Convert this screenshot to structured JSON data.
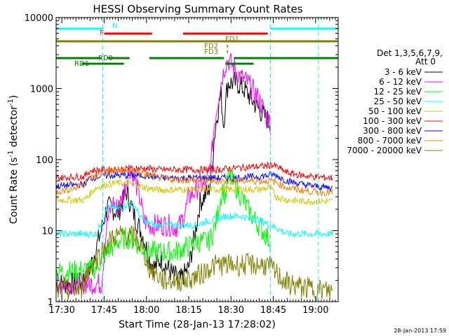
{
  "chart_data": {
    "type": "line",
    "title": "HESSI Observing Summary Count Rates",
    "xlabel": "Start Time (28-Jan-13 17:28:02)",
    "ylabel": "Count Rate (s⁻¹ detector⁻¹)",
    "ylabel_main": "Count Rate (s",
    "ylabel_sup1": "-1",
    "ylabel_mid": " detector",
    "ylabel_sup2": "-1",
    "ylabel_end": ")",
    "yscale": "log",
    "xlim_minutes": [
      -2.0333,
      98
    ],
    "ylim": [
      1,
      10000
    ],
    "xticks": [
      {
        "m": 0,
        "label": "17:30"
      },
      {
        "m": 15,
        "label": "17:45"
      },
      {
        "m": 30,
        "label": "18:00"
      },
      {
        "m": 45,
        "label": "18:15"
      },
      {
        "m": 60,
        "label": "18:30"
      },
      {
        "m": 75,
        "label": "18:45"
      },
      {
        "m": 90,
        "label": "19:00"
      }
    ],
    "yticks": [
      {
        "v": 1,
        "label": "1"
      },
      {
        "v": 10,
        "label": "10"
      },
      {
        "v": 100,
        "label": "100"
      },
      {
        "v": 1000,
        "label": "1000"
      },
      {
        "v": 10000,
        "label": "10000"
      }
    ],
    "legend": {
      "placement": "right",
      "header": [
        "Det 1,3,5,6,7,9,",
        "Att 0"
      ],
      "entries": [
        {
          "label": "3 - 6 keV",
          "color": "#000000"
        },
        {
          "label": "6 - 12 keV",
          "color": "#ff00ff"
        },
        {
          "label": "12 - 25 keV",
          "color": "#00ff00"
        },
        {
          "label": "25 - 50 keV",
          "color": "#00ffff"
        },
        {
          "label": "50 - 100 keV",
          "color": "#d2c800"
        },
        {
          "label": "100 - 300 keV",
          "color": "#ff0000"
        },
        {
          "label": "300 - 800 keV",
          "color": "#0000ff"
        },
        {
          "label": "800 - 7000 keV",
          "color": "#ff7f00"
        },
        {
          "label": "7000 - 20000 keV",
          "color": "#7f7f00"
        }
      ]
    },
    "flags": [
      {
        "label": "N",
        "color": "#00ffff",
        "segments": [
          [
            -2,
            14.5
          ],
          [
            74,
            98
          ]
        ]
      },
      {
        "label": "F",
        "color": "#ff0000",
        "segments": [
          [
            15,
            32
          ],
          [
            43,
            73
          ]
        ]
      },
      {
        "label": "FD1",
        "color": "#7f7f00",
        "segments": [
          [
            -2,
            98
          ]
        ]
      },
      {
        "label": "FD2",
        "color": "#7f7f00",
        "segments": [
          [
            58.5,
            59
          ]
        ]
      },
      {
        "label": "FD3",
        "color": "#7f7f00",
        "segments": [
          [
            58.5,
            59
          ]
        ]
      },
      {
        "label": "RD0",
        "color": "#008000",
        "segments": [
          [
            -2,
            14
          ],
          [
            16,
            24
          ],
          [
            31,
            57.5
          ],
          [
            61,
            98
          ]
        ]
      },
      {
        "label": "RD6",
        "color": "#008000",
        "segments": [
          [
            7,
            22
          ],
          [
            58,
            68
          ]
        ]
      }
    ],
    "saa_boundaries_minutes": [
      14.5,
      74,
      91
    ],
    "series": [
      {
        "name": "3 - 6 keV",
        "color": "#000000",
        "x": [
          -2,
          7,
          10,
          14,
          16,
          18,
          20,
          23,
          26,
          29,
          31,
          33,
          35,
          39,
          42,
          45,
          47,
          49,
          51,
          52,
          53,
          53.5,
          54,
          55,
          56,
          56.5,
          57,
          57.5,
          58,
          59,
          62,
          65,
          70,
          72,
          73.5,
          74
        ],
        "y": [
          1.8,
          1.8,
          3,
          10,
          22,
          20,
          18,
          35,
          15,
          8,
          4,
          3,
          4,
          2.5,
          2,
          3,
          8,
          25,
          32,
          35,
          60,
          100,
          200,
          400,
          700,
          800,
          450,
          300,
          700,
          1200,
          1200,
          950,
          500,
          400,
          350,
          320
        ]
      },
      {
        "name": "6 - 12 keV",
        "color": "#ff00ff",
        "x": [
          -2,
          14,
          16,
          18,
          20,
          22,
          24,
          26,
          28,
          29,
          31,
          33,
          35,
          38,
          40,
          42,
          44,
          45,
          47,
          49,
          51,
          53,
          54,
          56,
          57,
          58,
          59,
          61,
          63,
          66,
          70,
          72,
          73.5,
          74
        ],
        "y": [
          1.8,
          1.8,
          13,
          25,
          20,
          35,
          80,
          50,
          25,
          14,
          12,
          12,
          12,
          12,
          11,
          12,
          20,
          30,
          35,
          45,
          40,
          100,
          300,
          1000,
          1500,
          2200,
          2500,
          2000,
          1500,
          1200,
          700,
          450,
          350,
          320
        ]
      },
      {
        "name": "12 - 25 keV",
        "color": "#00ff00",
        "x": [
          -2,
          10,
          12,
          16,
          20,
          23,
          26,
          30,
          35,
          40,
          45,
          48,
          50,
          52,
          53.5,
          55,
          56,
          57,
          58,
          59,
          62,
          66,
          68,
          74
        ],
        "y": [
          2.6,
          2.8,
          3,
          5,
          7,
          8,
          7,
          5,
          5,
          5,
          6,
          7,
          7,
          7,
          9,
          15,
          25,
          40,
          30,
          60,
          40,
          20,
          15,
          7
        ]
      },
      {
        "name": "25 - 50 keV",
        "color": "#00ffff",
        "x": [
          -2,
          12,
          14,
          16,
          18,
          20,
          22,
          24,
          26,
          28,
          30,
          33,
          36,
          40,
          44,
          46,
          48,
          50,
          53,
          56,
          58,
          60,
          62,
          64,
          66,
          68,
          70,
          72,
          74,
          76,
          80,
          85,
          90,
          96
        ],
        "y": [
          9,
          9,
          13,
          20,
          22,
          20,
          22,
          25,
          22,
          15,
          13,
          12,
          12,
          12,
          12,
          12,
          12,
          13,
          14,
          15,
          16,
          16,
          16,
          16,
          15,
          15,
          14,
          13,
          12,
          11,
          9,
          9,
          9,
          9
        ]
      },
      {
        "name": "50 - 100 keV",
        "color": "#d2c800",
        "x": [
          -2,
          8,
          9,
          12,
          16,
          20,
          25,
          30,
          35,
          40,
          45,
          50,
          55,
          60,
          65,
          70,
          73.5,
          74,
          76,
          80,
          85,
          90,
          96
        ],
        "y": [
          27,
          27,
          30,
          40,
          45,
          47,
          45,
          40,
          37,
          38,
          38,
          38,
          38,
          38,
          38,
          38,
          40,
          40,
          30,
          27,
          26,
          26,
          26
        ]
      },
      {
        "name": "100 - 300 keV",
        "color": "#ff0000",
        "x": [
          -2,
          8,
          10,
          15,
          20,
          25,
          30,
          35,
          40,
          45,
          50,
          55,
          60,
          65,
          70,
          73.5,
          74,
          76,
          80,
          85,
          90,
          96
        ],
        "y": [
          55,
          58,
          70,
          72,
          72,
          75,
          75,
          72,
          72,
          72,
          72,
          72,
          75,
          78,
          80,
          82,
          85,
          80,
          65,
          60,
          57,
          55
        ]
      },
      {
        "name": "300 - 800 keV",
        "color": "#0000ff",
        "x": [
          -2,
          8,
          10,
          15,
          20,
          25,
          30,
          35,
          40,
          45,
          50,
          55,
          60,
          65,
          70,
          73.5,
          74,
          76,
          80,
          85,
          90,
          96
        ],
        "y": [
          42,
          45,
          55,
          60,
          60,
          60,
          60,
          55,
          55,
          55,
          55,
          55,
          55,
          56,
          58,
          60,
          62,
          60,
          50,
          45,
          42,
          40
        ]
      },
      {
        "name": "800 - 7000 keV",
        "color": "#ff7f00",
        "x": [
          -2,
          5,
          10,
          15,
          20,
          25,
          30,
          35,
          40,
          45,
          50,
          55,
          60,
          65,
          70,
          73.5,
          74,
          76,
          80,
          85,
          90,
          96
        ],
        "y": [
          35,
          40,
          55,
          65,
          72,
          70,
          62,
          55,
          52,
          52,
          50,
          50,
          50,
          50,
          50,
          50,
          50,
          48,
          40,
          37,
          35,
          34
        ]
      },
      {
        "name": "7000 - 20000 keV",
        "color": "#7f7f00",
        "x": [
          -2,
          7,
          8,
          10,
          14,
          18,
          22,
          26,
          28,
          30,
          31,
          33,
          36,
          40,
          44,
          48,
          50,
          52,
          55,
          58,
          60,
          62,
          64,
          66,
          68,
          70,
          72,
          74,
          76,
          80,
          85,
          90,
          96
        ],
        "y": [
          1.4,
          1.5,
          2,
          3,
          5,
          8,
          9,
          8,
          6,
          4,
          3,
          2.5,
          2,
          2,
          2,
          2.3,
          2.5,
          3,
          3.3,
          3.3,
          3.3,
          3.3,
          3.3,
          3.3,
          3.3,
          3.3,
          3.3,
          3,
          2.5,
          1.8,
          1.6,
          1.5,
          1.4
        ]
      }
    ]
  },
  "footer": {
    "timestamp": "28-Jan-2013 17:59"
  }
}
